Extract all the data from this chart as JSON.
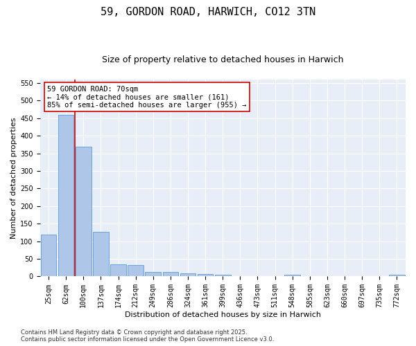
{
  "title": "59, GORDON ROAD, HARWICH, CO12 3TN",
  "subtitle": "Size of property relative to detached houses in Harwich",
  "xlabel": "Distribution of detached houses by size in Harwich",
  "ylabel": "Number of detached properties",
  "categories": [
    "25sqm",
    "62sqm",
    "100sqm",
    "137sqm",
    "174sqm",
    "212sqm",
    "249sqm",
    "286sqm",
    "324sqm",
    "361sqm",
    "399sqm",
    "436sqm",
    "473sqm",
    "511sqm",
    "548sqm",
    "585sqm",
    "623sqm",
    "660sqm",
    "697sqm",
    "735sqm",
    "772sqm"
  ],
  "values": [
    120,
    460,
    370,
    127,
    35,
    33,
    12,
    12,
    8,
    7,
    5,
    1,
    0,
    0,
    4,
    0,
    0,
    0,
    0,
    0,
    5
  ],
  "bar_color": "#aec6e8",
  "bar_edge_color": "#5b9bd5",
  "vline_color": "#cc0000",
  "annotation_text": "59 GORDON ROAD: 70sqm\n← 14% of detached houses are smaller (161)\n85% of semi-detached houses are larger (955) →",
  "annotation_box_color": "#cc0000",
  "ylim": [
    0,
    560
  ],
  "yticks": [
    0,
    50,
    100,
    150,
    200,
    250,
    300,
    350,
    400,
    450,
    500,
    550
  ],
  "footer": "Contains HM Land Registry data © Crown copyright and database right 2025.\nContains public sector information licensed under the Open Government Licence v3.0.",
  "bg_color": "#e8eef8",
  "title_fontsize": 11,
  "subtitle_fontsize": 9,
  "axis_label_fontsize": 8,
  "tick_fontsize": 7,
  "annotation_fontsize": 7.5,
  "footer_fontsize": 6
}
